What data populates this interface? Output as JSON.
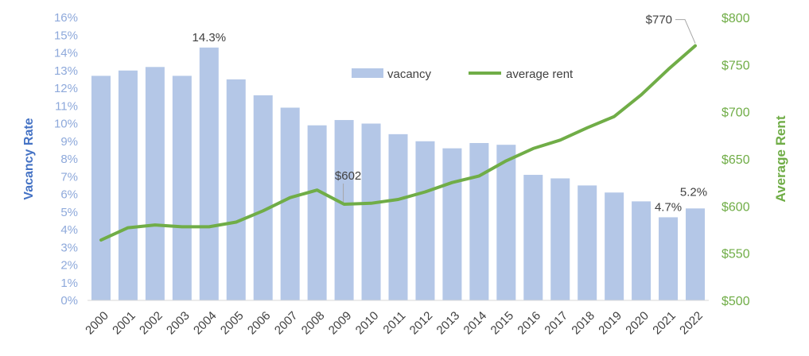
{
  "chart_data": {
    "type": "bar+line",
    "categories": [
      "2000",
      "2001",
      "2002",
      "2003",
      "2004",
      "2005",
      "2006",
      "2007",
      "2008",
      "2009",
      "2010",
      "2011",
      "2012",
      "2013",
      "2014",
      "2015",
      "2016",
      "2017",
      "2018",
      "2019",
      "2020",
      "2021",
      "2022"
    ],
    "series": [
      {
        "name": "vacancy",
        "type": "bar",
        "axis": "left",
        "color": "#B4C7E7",
        "values": [
          12.7,
          13.0,
          13.2,
          12.7,
          14.3,
          12.5,
          11.6,
          10.9,
          9.9,
          10.2,
          10.0,
          9.4,
          9.0,
          8.6,
          8.9,
          8.8,
          7.1,
          6.9,
          6.5,
          6.1,
          5.6,
          4.7,
          5.2
        ]
      },
      {
        "name": "average rent",
        "type": "line",
        "axis": "right",
        "color": "#70AD47",
        "values": [
          564,
          577,
          580,
          578,
          578,
          583,
          595,
          609,
          617,
          602,
          603,
          607,
          615,
          625,
          632,
          648,
          661,
          670,
          683,
          695,
          718,
          745,
          770
        ]
      }
    ],
    "y_left": {
      "label": "Vacancy Rate",
      "range": [
        0,
        16
      ],
      "ticks": [
        "0%",
        "1%",
        "2%",
        "3%",
        "4%",
        "5%",
        "6%",
        "7%",
        "8%",
        "9%",
        "10%",
        "11%",
        "12%",
        "13%",
        "14%",
        "15%",
        "16%"
      ],
      "color": "#8EA9DB",
      "title_color": "#4472C4"
    },
    "y_right": {
      "label": "Average Rent",
      "range": [
        500,
        800
      ],
      "ticks": [
        "$500",
        "$550",
        "$600",
        "$650",
        "$700",
        "$750",
        "$800"
      ],
      "color": "#70AD47"
    },
    "annotations": [
      {
        "text": "14.3%",
        "series": "vacancy",
        "index": 4
      },
      {
        "text": "4.7%",
        "series": "vacancy",
        "index": 21
      },
      {
        "text": "5.2%",
        "series": "vacancy",
        "index": 22
      },
      {
        "text": "$602",
        "series": "average rent",
        "index": 9
      },
      {
        "text": "$770",
        "series": "average rent",
        "index": 22
      }
    ],
    "legend": {
      "position": "top-center",
      "items": [
        "vacancy",
        "average rent"
      ]
    },
    "grid": false
  }
}
